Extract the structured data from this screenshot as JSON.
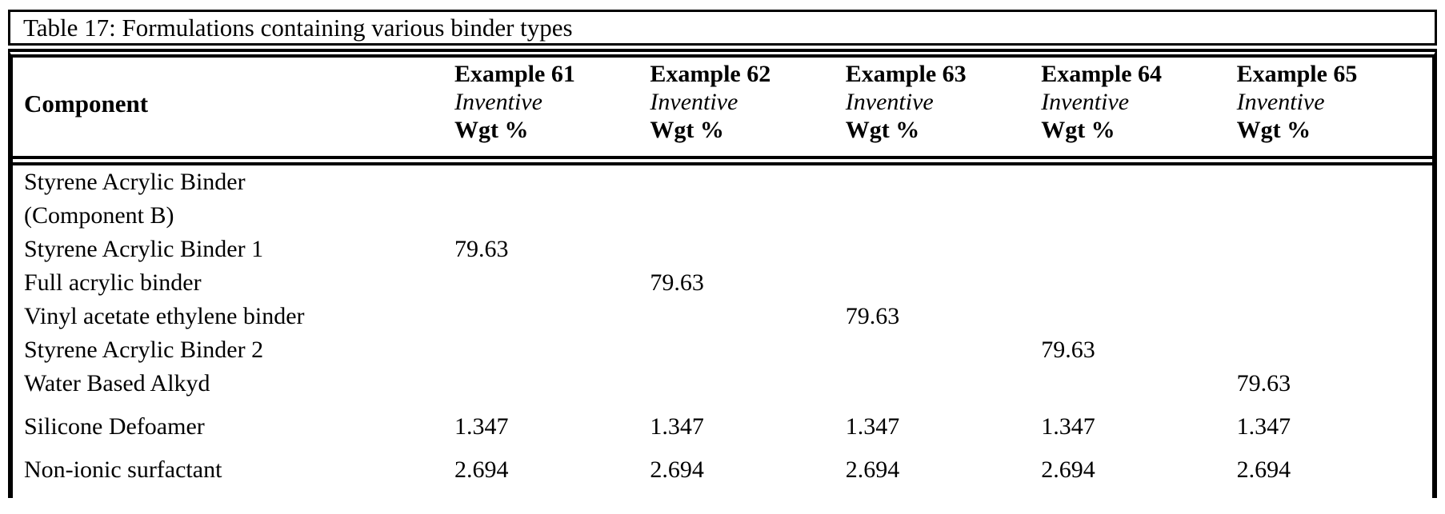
{
  "title": "Table 17: Formulations containing various binder types",
  "header": {
    "component_label": "Component",
    "columns": [
      {
        "name": "Example 61",
        "type": "Inventive",
        "unit": "Wgt %"
      },
      {
        "name": "Example 62",
        "type": "Inventive",
        "unit": "Wgt %"
      },
      {
        "name": "Example 63",
        "type": "Inventive",
        "unit": "Wgt %"
      },
      {
        "name": "Example 64",
        "type": "Inventive",
        "unit": "Wgt %"
      },
      {
        "name": "Example 65",
        "type": "Inventive",
        "unit": "Wgt %"
      }
    ]
  },
  "rows": [
    {
      "component": "Styrene Acrylic Binder",
      "component_line2": "(Component B)",
      "values": [
        "",
        "",
        "",
        "",
        ""
      ]
    },
    {
      "component": "Styrene Acrylic Binder 1",
      "values": [
        "79.63",
        "",
        "",
        "",
        ""
      ]
    },
    {
      "component": "Full acrylic binder",
      "values": [
        "",
        "79.63",
        "",
        "",
        ""
      ]
    },
    {
      "component": "Vinyl acetate ethylene binder",
      "values": [
        "",
        "",
        "79.63",
        "",
        ""
      ]
    },
    {
      "component": "Styrene Acrylic Binder 2",
      "values": [
        "",
        "",
        "",
        "79.63",
        ""
      ]
    },
    {
      "component": "Water Based Alkyd",
      "values": [
        "",
        "",
        "",
        "",
        "79.63"
      ]
    },
    {
      "component": "Silicone Defoamer",
      "values": [
        "1.347",
        "1.347",
        "1.347",
        "1.347",
        "1.347"
      ]
    },
    {
      "component": "Non-ionic surfactant",
      "values": [
        "2.694",
        "2.694",
        "2.694",
        "2.694",
        "2.694"
      ]
    }
  ]
}
